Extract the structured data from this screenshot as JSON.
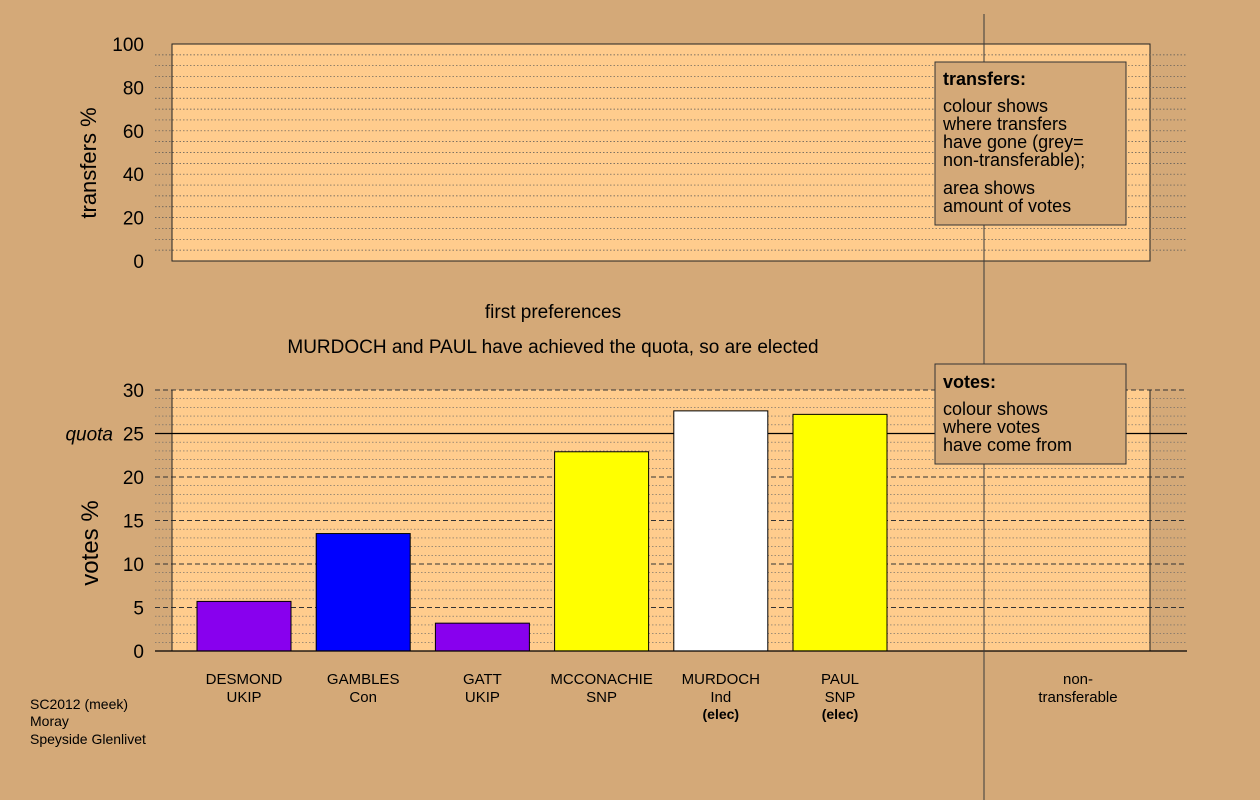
{
  "chart_data": [
    {
      "type": "bar",
      "ylabel": "transfers %",
      "ylim": [
        0,
        100
      ],
      "yticks": [
        0,
        20,
        40,
        60,
        80,
        100
      ],
      "legend": {
        "title": "transfers:",
        "lines1": [
          "colour shows",
          "where transfers",
          "have gone (grey=",
          "non-transferable);"
        ],
        "lines2": [
          "area shows",
          "amount of votes"
        ]
      },
      "values": []
    },
    {
      "type": "bar",
      "title": "first preferences",
      "subtitle": "MURDOCH and PAUL have achieved the quota, so are elected",
      "ylabel": "votes %",
      "ylim": [
        0,
        30
      ],
      "yticks": [
        0,
        5,
        10,
        15,
        20,
        25,
        30
      ],
      "quota": 25,
      "quota_label": "quota",
      "legend": {
        "title": "votes:",
        "lines": [
          "colour shows",
          "where votes",
          "have come from"
        ]
      },
      "categories": [
        {
          "name": "DESMOND",
          "party": "UKIP",
          "note": "",
          "value": 5.7,
          "color": "#8800ee"
        },
        {
          "name": "GAMBLES",
          "party": "Con",
          "note": "",
          "value": 13.5,
          "color": "#0000ff"
        },
        {
          "name": "GATT",
          "party": "UKIP",
          "note": "",
          "value": 3.2,
          "color": "#8800ee"
        },
        {
          "name": "MCCONACHIE",
          "party": "SNP",
          "note": "",
          "value": 22.9,
          "color": "#ffff00"
        },
        {
          "name": "MURDOCH",
          "party": "Ind",
          "note": "(elec)",
          "value": 27.6,
          "color": "#ffffff"
        },
        {
          "name": "PAUL",
          "party": "SNP",
          "note": "(elec)",
          "value": 27.2,
          "color": "#ffff00"
        }
      ],
      "nontransferable_label": [
        "non-",
        "transferable"
      ],
      "nontransferable_value": 0
    }
  ],
  "footer": [
    "SC2012 (meek)",
    "Moray",
    "Speyside Glenlivet"
  ]
}
